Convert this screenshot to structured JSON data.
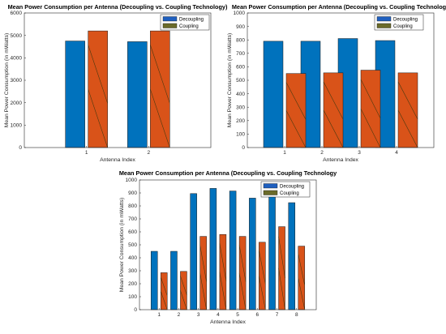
{
  "colors": {
    "decoupling": "#0072BD",
    "coupling": "#D95319",
    "hatch": "#4a3a10",
    "axis": "#262626",
    "legend_decoupling": "#1f5fbf",
    "legend_coupling": "#6b6b2a"
  },
  "chart_data": [
    {
      "type": "bar",
      "title": "Mean Power Consumption per Antenna (Decoupling vs. Coupling Technology)",
      "xlabel": "Antenna Index",
      "ylabel": "Mean Power Consumption (in mWatts)",
      "categories": [
        "1",
        "2"
      ],
      "ylim": [
        0,
        6000
      ],
      "yticks": [
        0,
        1000,
        2000,
        3000,
        4000,
        5000,
        6000
      ],
      "grid": false,
      "legend_position": "top-right",
      "series": [
        {
          "name": "Decoupling",
          "values": [
            4750,
            4720
          ]
        },
        {
          "name": "Coupling",
          "values": [
            5200,
            5200
          ]
        }
      ]
    },
    {
      "type": "bar",
      "title": "Mean Power Consumption per Antenna (Decoupling vs. Coupling Technology",
      "xlabel": "Antenna Index",
      "ylabel": "Mean Power Consumption (in mWatts)",
      "categories": [
        "1",
        "2",
        "3",
        "4"
      ],
      "ylim": [
        0,
        1000
      ],
      "yticks": [
        0,
        100,
        200,
        300,
        400,
        500,
        600,
        700,
        800,
        900,
        1000
      ],
      "grid": false,
      "legend_position": "top-right",
      "series": [
        {
          "name": "Decoupling",
          "values": [
            790,
            790,
            810,
            795
          ]
        },
        {
          "name": "Coupling",
          "values": [
            550,
            555,
            575,
            555
          ]
        }
      ]
    },
    {
      "type": "bar",
      "title": "Mean Power Consumption per Antenna (Decoupling vs. Coupling Technology",
      "xlabel": "Antenna Index",
      "ylabel": "Mean Power Consumption (in mWatts)",
      "categories": [
        "1",
        "2",
        "3",
        "4",
        "5",
        "6",
        "7",
        "8"
      ],
      "ylim": [
        0,
        1000
      ],
      "yticks": [
        0,
        100,
        200,
        300,
        400,
        500,
        600,
        700,
        800,
        900,
        1000
      ],
      "grid": false,
      "legend_position": "top-right",
      "series": [
        {
          "name": "Decoupling",
          "values": [
            450,
            450,
            895,
            935,
            915,
            860,
            975,
            825
          ]
        },
        {
          "name": "Coupling",
          "values": [
            285,
            295,
            565,
            580,
            565,
            520,
            640,
            490
          ]
        }
      ]
    }
  ]
}
